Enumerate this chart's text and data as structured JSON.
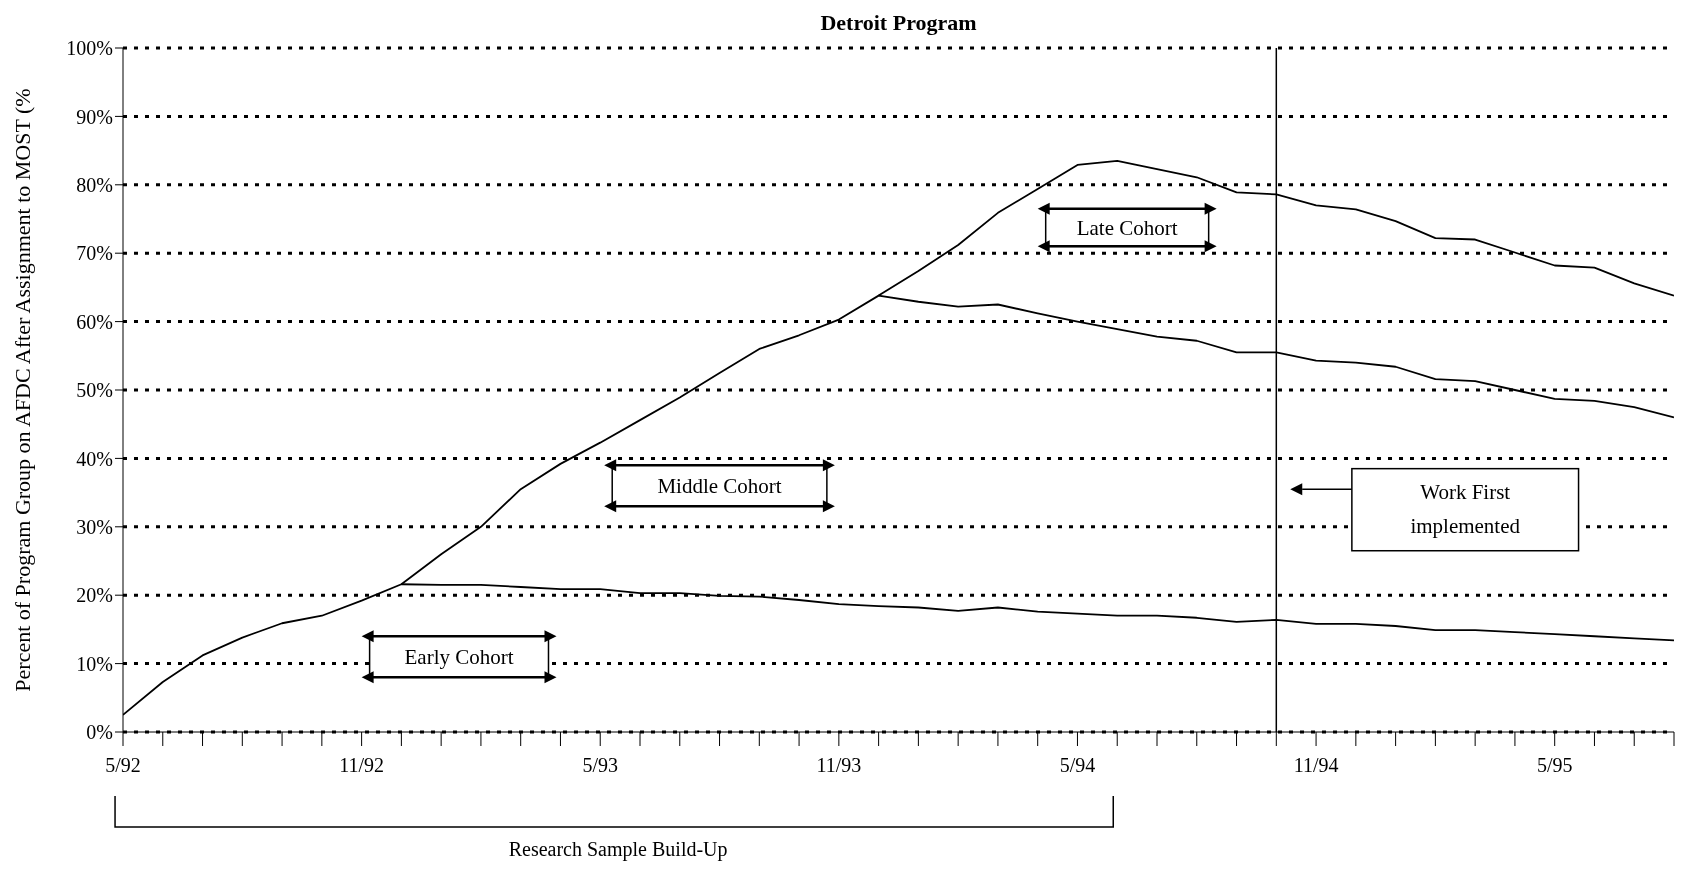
{
  "chart_data": {
    "type": "line",
    "title": "Detroit Program",
    "ylabel": "Percent of Program Group on AFDC After Assignment to MOST (%",
    "x": [
      "1992-05",
      "1992-06",
      "1992-07",
      "1992-08",
      "1992-09",
      "1992-10",
      "1992-11",
      "1992-12",
      "1993-01",
      "1993-02",
      "1993-03",
      "1993-04",
      "1993-05",
      "1993-06",
      "1993-07",
      "1993-08",
      "1993-09",
      "1993-10",
      "1993-11",
      "1993-12",
      "1994-01",
      "1994-02",
      "1994-03",
      "1994-04",
      "1994-05",
      "1994-06",
      "1994-07",
      "1994-08",
      "1994-09",
      "1994-10",
      "1994-11",
      "1994-12",
      "1995-01",
      "1995-02",
      "1995-03",
      "1995-04",
      "1995-05",
      "1995-06",
      "1995-07",
      "1995-08"
    ],
    "series": [
      {
        "color": "#000000",
        "values": [
          2.5,
          7.3,
          11.2,
          13.8,
          15.9,
          17.0,
          19.2,
          21.6,
          21.5,
          21.5,
          21.2,
          20.9,
          20.9,
          20.3,
          20.3,
          19.9,
          19.8,
          19.3,
          18.7,
          18.4,
          18.2,
          17.7,
          18.2,
          17.6,
          17.3,
          17.0,
          17.0,
          16.7,
          16.1,
          16.4,
          15.8,
          15.8,
          15.5,
          14.9,
          14.9,
          14.6,
          14.3,
          14.0,
          13.7,
          13.4
        ]
      },
      {
        "color": "#000000",
        "values": [
          null,
          null,
          null,
          null,
          null,
          null,
          null,
          21.6,
          26.0,
          30.0,
          35.5,
          39.2,
          42.3,
          45.6,
          48.9,
          52.5,
          56.0,
          58.0,
          60.3,
          63.8,
          62.9,
          62.2,
          62.5,
          61.2,
          60.0,
          58.9,
          57.8,
          57.2,
          55.5,
          55.5,
          54.3,
          54.0,
          53.4,
          51.6,
          51.3,
          50.0,
          48.7,
          48.4,
          47.5,
          46.0
        ]
      },
      {
        "color": "#000000",
        "values": [
          null,
          null,
          null,
          null,
          null,
          null,
          null,
          null,
          null,
          null,
          null,
          null,
          null,
          null,
          null,
          null,
          null,
          null,
          null,
          63.8,
          67.4,
          71.2,
          75.9,
          79.4,
          82.9,
          83.5,
          82.3,
          81.1,
          78.9,
          78.6,
          77.0,
          76.4,
          74.7,
          72.2,
          72.0,
          70.1,
          68.2,
          67.9,
          65.6,
          63.8
        ]
      }
    ],
    "xlim": [
      "1992-05",
      "1995-08"
    ],
    "xticks": [
      {
        "value": "1992-05",
        "label": "5/92"
      },
      {
        "value": "1992-06",
        "label": null
      },
      {
        "value": "1992-07",
        "label": null
      },
      {
        "value": "1992-08",
        "label": null
      },
      {
        "value": "1992-09",
        "label": null
      },
      {
        "value": "1992-10",
        "label": null
      },
      {
        "value": "1992-11",
        "label": "11/92"
      },
      {
        "value": "1992-12",
        "label": null
      },
      {
        "value": "1993-01",
        "label": null
      },
      {
        "value": "1993-02",
        "label": null
      },
      {
        "value": "1993-03",
        "label": null
      },
      {
        "value": "1993-04",
        "label": null
      },
      {
        "value": "1993-05",
        "label": "5/93"
      },
      {
        "value": "1993-06",
        "label": null
      },
      {
        "value": "1993-07",
        "label": null
      },
      {
        "value": "1993-08",
        "label": null
      },
      {
        "value": "1993-09",
        "label": null
      },
      {
        "value": "1993-10",
        "label": null
      },
      {
        "value": "1993-11",
        "label": "11/93"
      },
      {
        "value": "1993-12",
        "label": null
      },
      {
        "value": "1994-01",
        "label": null
      },
      {
        "value": "1994-02",
        "label": null
      },
      {
        "value": "1994-03",
        "label": null
      },
      {
        "value": "1994-04",
        "label": null
      },
      {
        "value": "1994-05",
        "label": "5/94"
      },
      {
        "value": "1994-06",
        "label": null
      },
      {
        "value": "1994-07",
        "label": null
      },
      {
        "value": "1994-08",
        "label": null
      },
      {
        "value": "1994-09",
        "label": null
      },
      {
        "value": "1994-10",
        "label": null
      },
      {
        "value": "1994-11",
        "label": "11/94"
      },
      {
        "value": "1994-12",
        "label": null
      },
      {
        "value": "1995-01",
        "label": null
      },
      {
        "value": "1995-02",
        "label": null
      },
      {
        "value": "1995-03",
        "label": null
      },
      {
        "value": "1995-04",
        "label": null
      },
      {
        "value": "1995-05",
        "label": "5/95"
      },
      {
        "value": "1995-06",
        "label": null
      },
      {
        "value": "1995-07",
        "label": null
      },
      {
        "value": "1995-08",
        "label": null
      }
    ],
    "ylim": [
      0,
      100
    ],
    "yticks": [
      {
        "value": 0,
        "label": "0%"
      },
      {
        "value": 10,
        "label": "10%"
      },
      {
        "value": 20,
        "label": "20%"
      },
      {
        "value": 30,
        "label": "30%"
      },
      {
        "value": 40,
        "label": "40%"
      },
      {
        "value": 50,
        "label": "50%"
      },
      {
        "value": 60,
        "label": "60%"
      },
      {
        "value": 70,
        "label": "70%"
      },
      {
        "value": 80,
        "label": "80%"
      },
      {
        "value": 90,
        "label": "90%"
      },
      {
        "value": 100,
        "label": "100%"
      }
    ],
    "grid": "y",
    "marker": "none",
    "line_style": "solid",
    "legend": false,
    "ref_lines": [
      {
        "axis": "x",
        "value": "1994-10",
        "label": "Work First implemented",
        "color": "#000000",
        "line_style": "solid"
      }
    ],
    "annotations": [
      "Early Cohort",
      "Middle Cohort",
      "Late Cohort",
      "Research Sample Build-Up"
    ]
  }
}
